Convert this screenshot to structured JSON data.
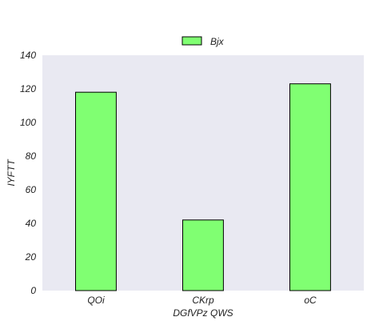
{
  "chart_data": {
    "type": "bar",
    "title": "",
    "xlabel": "DGfVPz QWS",
    "ylabel": "IYFTT",
    "categories": [
      "QOi",
      "CKrp",
      "oC"
    ],
    "series": [
      {
        "name": "Bjx",
        "values": [
          118,
          42,
          123
        ]
      }
    ],
    "ylim": [
      0,
      140
    ],
    "yticks": [
      0,
      20,
      40,
      60,
      80,
      100,
      120,
      140
    ],
    "grid": false,
    "legend": "top-center",
    "colors": {
      "plot_background": "#e9e9f2",
      "bar_fill": "#80ff72",
      "bar_stroke": "#000000"
    }
  }
}
